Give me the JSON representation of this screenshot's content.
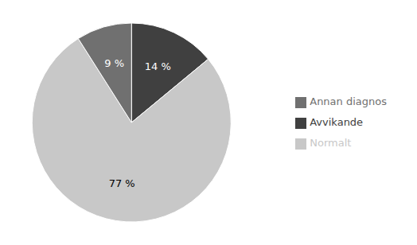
{
  "chart_data": {
    "type": "pie",
    "categories": [
      "Avvikande",
      "Normalt",
      "Annan diagnos"
    ],
    "values": [
      14,
      77,
      9
    ],
    "value_labels": [
      "14 %",
      "77 %",
      "9 %"
    ],
    "colors": [
      "#404040",
      "#c8c8c8",
      "#707070"
    ],
    "data_labels": true,
    "legend": "right"
  }
}
